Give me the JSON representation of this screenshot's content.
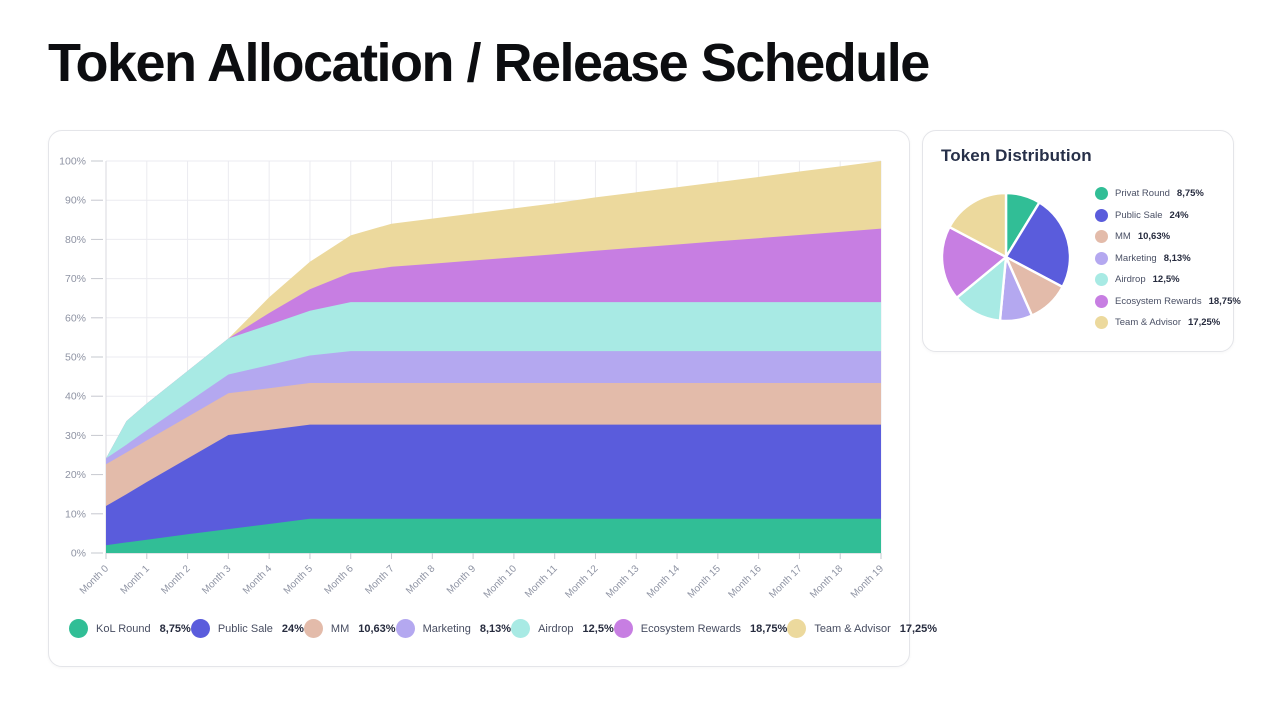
{
  "page": {
    "title": "Token Allocation / Release Schedule",
    "background": "#ffffff"
  },
  "palette": {
    "teal": "#31BE96",
    "blue": "#5A5CDC",
    "salmon": "#E3BBAA",
    "lavender": "#B4A8F0",
    "cyan": "#A8EAE4",
    "magenta": "#C77EE2",
    "yellow": "#ECD99D",
    "grid": "#ebebf0",
    "axis": "#c6c8cf",
    "tick_label": "#8e93a3"
  },
  "chart_data": [
    {
      "type": "area",
      "stacked": true,
      "title": "",
      "xlabel": "",
      "ylabel": "",
      "ylim": [
        0,
        100
      ],
      "grid": true,
      "legend_position": "bottom",
      "x": [
        0,
        0.5,
        1,
        2,
        3,
        4,
        5,
        6,
        7,
        8,
        9,
        10,
        11,
        12,
        13,
        14,
        15,
        16,
        17,
        18,
        19
      ],
      "x_tick_labels": [
        "Month 0",
        "Month 1",
        "Month 2",
        "Month 3",
        "Month 4",
        "Month 5",
        "Month 6",
        "Month 7",
        "Month 8",
        "Month 9",
        "Month 10",
        "Month 11",
        "Month 12",
        "Month 13",
        "Month 14",
        "Month 15",
        "Month 16",
        "Month 17",
        "Month 18",
        "Month 19"
      ],
      "y_tick_labels": [
        "0%",
        "10%",
        "20%",
        "30%",
        "40%",
        "50%",
        "60%",
        "70%",
        "80%",
        "90%",
        "100%"
      ],
      "series": [
        {
          "name": "KoL Round",
          "display": "8,75%",
          "total_pct": 8.75,
          "color": "#31BE96",
          "cumulative_values": [
            2,
            2.7,
            3.4,
            4.8,
            6.1,
            7.4,
            8.75,
            8.75,
            8.75,
            8.75,
            8.75,
            8.75,
            8.75,
            8.75,
            8.75,
            8.75,
            8.75,
            8.75,
            8.75,
            8.75,
            8.75
          ]
        },
        {
          "name": "Public Sale",
          "display": "24%",
          "total_pct": 24,
          "color": "#5A5CDC",
          "cumulative_values": [
            10,
            12.3,
            14.7,
            19.3,
            24,
            24,
            24,
            24,
            24,
            24,
            24,
            24,
            24,
            24,
            24,
            24,
            24,
            24,
            24,
            24,
            24
          ]
        },
        {
          "name": "MM",
          "display": "10,63%",
          "total_pct": 10.63,
          "color": "#E3BBAA",
          "cumulative_values": [
            10.63,
            10.63,
            10.63,
            10.63,
            10.63,
            10.63,
            10.63,
            10.63,
            10.63,
            10.63,
            10.63,
            10.63,
            10.63,
            10.63,
            10.63,
            10.63,
            10.63,
            10.63,
            10.63,
            10.63,
            10.63
          ]
        },
        {
          "name": "Marketing",
          "display": "8,13%",
          "total_pct": 8.13,
          "color": "#B4A8F0",
          "cumulative_values": [
            1.5,
            2,
            2.6,
            3.7,
            4.8,
            5.9,
            7,
            8.13,
            8.13,
            8.13,
            8.13,
            8.13,
            8.13,
            8.13,
            8.13,
            8.13,
            8.13,
            8.13,
            8.13,
            8.13,
            8.13
          ]
        },
        {
          "name": "Airdrop",
          "display": "12,5%",
          "total_pct": 12.5,
          "color": "#A8EAE4",
          "cumulative_values": [
            0,
            6,
            6.8,
            8,
            9.2,
            10.3,
            11.4,
            12.5,
            12.5,
            12.5,
            12.5,
            12.5,
            12.5,
            12.5,
            12.5,
            12.5,
            12.5,
            12.5,
            12.5,
            12.5,
            12.5
          ]
        },
        {
          "name": "Ecosystem Rewards",
          "display": "18,75%",
          "total_pct": 18.75,
          "color": "#C77EE2",
          "cumulative_values": [
            0,
            0,
            0,
            0,
            0,
            3,
            5.5,
            7.5,
            9,
            9.8,
            10.6,
            11.4,
            12.2,
            13.1,
            13.9,
            14.7,
            15.5,
            16.3,
            17.1,
            17.9,
            18.75
          ]
        },
        {
          "name": "Team & Advisor",
          "display": "17,25%",
          "total_pct": 17.25,
          "color": "#ECD99D",
          "cumulative_values": [
            0,
            0,
            0,
            0,
            0,
            4,
            7,
            9.5,
            11,
            11.5,
            12,
            12.5,
            13,
            13.6,
            14.1,
            14.6,
            15.1,
            15.6,
            16.2,
            16.7,
            17.25
          ]
        }
      ]
    },
    {
      "type": "pie",
      "title": "Token Distribution",
      "legend_position": "right",
      "slices": [
        {
          "label": "Privat Round",
          "display": "8,75%",
          "value": 8.75,
          "color": "#31BE96"
        },
        {
          "label": "Public Sale",
          "display": "24%",
          "value": 24,
          "color": "#5A5CDC"
        },
        {
          "label": "MM",
          "display": "10,63%",
          "value": 10.63,
          "color": "#E3BBAA"
        },
        {
          "label": "Marketing",
          "display": "8,13%",
          "value": 8.13,
          "color": "#B4A8F0"
        },
        {
          "label": "Airdrop",
          "display": "12,5%",
          "value": 12.5,
          "color": "#A8EAE4"
        },
        {
          "label": "Ecosystem Rewards",
          "display": "18,75%",
          "value": 18.75,
          "color": "#C77EE2"
        },
        {
          "label": "Team & Advisor",
          "display": "17,25%",
          "value": 17.25,
          "color": "#ECD99D"
        }
      ]
    }
  ]
}
